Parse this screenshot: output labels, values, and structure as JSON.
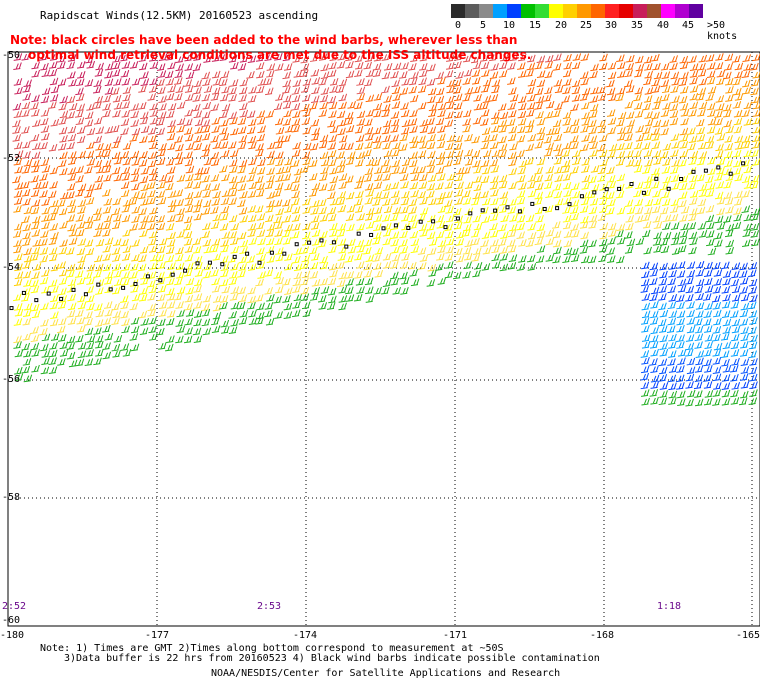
{
  "title": "Rapidscat Winds(12.5KM) 20160523 ascending",
  "legend": {
    "labels": [
      "0",
      "5",
      "10",
      "15",
      "20",
      "25",
      "30",
      "35",
      "40",
      "45",
      ">50 knots"
    ],
    "colors": [
      "#2b2b2b",
      "#5c5c5c",
      "#8a8a8a",
      "#00a0ff",
      "#0040ff",
      "#00c000",
      "#33dd33",
      "#ffff00",
      "#ffd000",
      "#ff9900",
      "#ff6600",
      "#ff2020",
      "#e60000",
      "#c81e5a",
      "#a0522d",
      "#ff00ff",
      "#b000d0",
      "#6000a0"
    ]
  },
  "note": {
    "line1": "Note: black circles have been added to the wind barbs, wherever less than",
    "line2": "optimal wind retrieval conditions are met due to the ISS altitude changes."
  },
  "latitude_labels": [
    "-50",
    "-52",
    "-54",
    "-56",
    "-58",
    "-60"
  ],
  "longitude_labels": [
    "-180",
    "-177",
    "-174",
    "-171",
    "-168",
    "-165"
  ],
  "time_labels": [
    "2:52",
    "2:53",
    "1:18"
  ],
  "footnotes": {
    "line1": "Note: 1) Times are GMT 2)Times along bottom correspond to measurement at ~50S",
    "line2": "3)Data buffer is 22 hrs from 20160523 4) Black wind barbs indicate possible contamination",
    "credit": "NOAA/NESDIS/Center for Satellite Applications and Research"
  }
}
